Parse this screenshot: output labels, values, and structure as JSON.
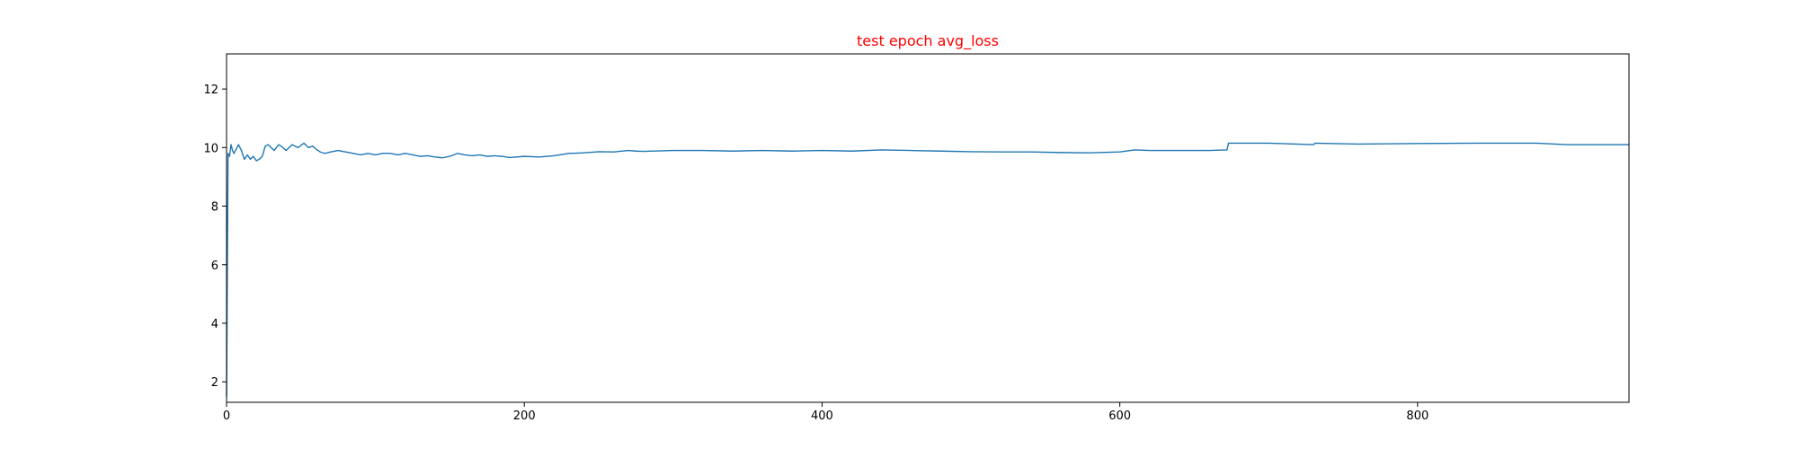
{
  "chart_data": {
    "type": "line",
    "title": "test epoch avg_loss",
    "title_color": "#ff0000",
    "xlabel": "",
    "ylabel": "",
    "xlim": [
      0,
      942
    ],
    "ylim": [
      1.3,
      13.2
    ],
    "xticks": [
      0,
      200,
      400,
      600,
      800
    ],
    "yticks": [
      2,
      4,
      6,
      8,
      10,
      12
    ],
    "grid": false,
    "legend": "none",
    "series": [
      {
        "color": "#1f77b4",
        "x": [
          0,
          1,
          2,
          3,
          4,
          5,
          6,
          8,
          10,
          12,
          14,
          16,
          18,
          20,
          22,
          24,
          26,
          28,
          30,
          32,
          35,
          38,
          40,
          44,
          48,
          52,
          55,
          58,
          60,
          63,
          66,
          70,
          75,
          80,
          85,
          90,
          95,
          100,
          105,
          110,
          115,
          120,
          125,
          130,
          135,
          140,
          145,
          150,
          155,
          160,
          165,
          170,
          175,
          180,
          185,
          190,
          200,
          210,
          220,
          230,
          240,
          250,
          260,
          270,
          275,
          280,
          300,
          320,
          340,
          360,
          380,
          400,
          420,
          440,
          460,
          480,
          500,
          520,
          540,
          560,
          580,
          600,
          610,
          620,
          640,
          660,
          672,
          673,
          700,
          730,
          731,
          760,
          800,
          840,
          880,
          900,
          942
        ],
        "y": [
          1.5,
          9.8,
          9.7,
          10.1,
          9.9,
          9.8,
          9.9,
          10.1,
          9.9,
          9.6,
          9.75,
          9.6,
          9.7,
          9.55,
          9.6,
          9.7,
          10.05,
          10.1,
          10.0,
          9.9,
          10.1,
          10.0,
          9.9,
          10.1,
          10.0,
          10.15,
          10.0,
          10.05,
          9.95,
          9.85,
          9.8,
          9.85,
          9.9,
          9.85,
          9.8,
          9.75,
          9.8,
          9.75,
          9.8,
          9.8,
          9.75,
          9.8,
          9.75,
          9.7,
          9.72,
          9.68,
          9.65,
          9.7,
          9.8,
          9.75,
          9.72,
          9.75,
          9.7,
          9.72,
          9.7,
          9.66,
          9.7,
          9.68,
          9.72,
          9.8,
          9.82,
          9.86,
          9.85,
          9.9,
          9.88,
          9.87,
          9.9,
          9.9,
          9.88,
          9.9,
          9.88,
          9.9,
          9.88,
          9.92,
          9.9,
          9.88,
          9.86,
          9.85,
          9.85,
          9.83,
          9.82,
          9.85,
          9.92,
          9.9,
          9.9,
          9.9,
          9.92,
          10.15,
          10.15,
          10.1,
          10.15,
          10.12,
          10.14,
          10.15,
          10.15,
          10.1,
          10.1
        ]
      }
    ]
  }
}
